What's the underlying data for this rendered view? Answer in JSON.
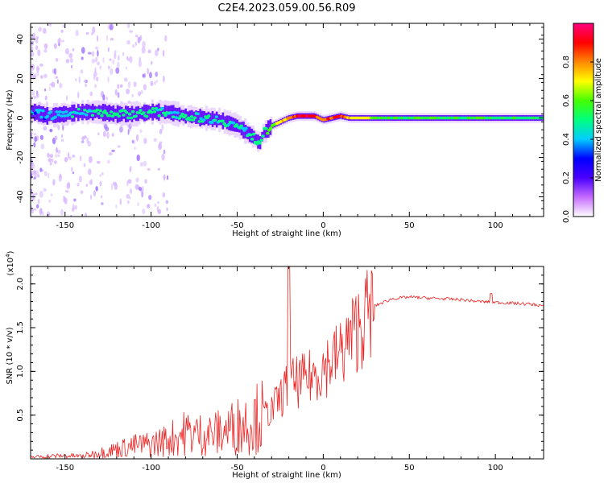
{
  "figure": {
    "title": "C2E4.2023.059.00.56.R09"
  },
  "colorbar": {
    "label": "Normalized spectral amplitude",
    "ticks": [
      "0.0",
      "0.2",
      "0.4",
      "0.6",
      "0.8"
    ],
    "tick_values": [
      0.0,
      0.2,
      0.4,
      0.6,
      0.8
    ],
    "colormap": [
      "#ffffff",
      "#c66cff",
      "#4b00ff",
      "#0000ff",
      "#00ccff",
      "#00ff80",
      "#44ff00",
      "#ffff00",
      "#ff8800",
      "#ff0000",
      "#ff0080"
    ]
  },
  "chart_data": [
    {
      "type": "heatmap",
      "title": "",
      "xlabel": "Height of straight line (km)",
      "ylabel": "Frequency (Hz)",
      "xlim": [
        -170,
        128
      ],
      "ylim": [
        -50,
        48
      ],
      "xticks": [
        "-150",
        "-100",
        "-50",
        "0",
        "50",
        "100"
      ],
      "xtick_values": [
        -150,
        -100,
        -50,
        0,
        50,
        100
      ],
      "yticks": [
        "40",
        "20",
        "0",
        "-20",
        "-40"
      ],
      "ytick_values": [
        40,
        20,
        0,
        -20,
        -40
      ],
      "value_range": [
        0,
        1
      ],
      "ridge": {
        "x": [
          -168,
          -160,
          -150,
          -140,
          -130,
          -120,
          -110,
          -100,
          -90,
          -80,
          -70,
          -60,
          -50,
          -45,
          -40,
          -37,
          -35,
          -30,
          -25,
          -20,
          -15,
          -10,
          -5,
          0,
          5,
          10,
          15,
          20,
          30,
          40,
          60,
          80,
          100,
          128
        ],
        "frequency": [
          3,
          1,
          2,
          3,
          3,
          2,
          2,
          3,
          3,
          1,
          0,
          -1,
          -4,
          -7,
          -10,
          -13,
          -8,
          -4,
          -2,
          0,
          1,
          1,
          1,
          -1,
          0,
          1,
          0,
          0,
          0,
          0,
          0,
          0,
          0,
          0
        ],
        "amplitude": [
          0.35,
          0.4,
          0.45,
          0.45,
          0.45,
          0.5,
          0.5,
          0.5,
          0.45,
          0.45,
          0.45,
          0.45,
          0.45,
          0.45,
          0.5,
          0.45,
          0.5,
          0.6,
          0.7,
          0.8,
          0.9,
          0.95,
          0.9,
          0.8,
          0.85,
          0.9,
          0.75,
          0.7,
          0.6,
          0.55,
          0.55,
          0.55,
          0.55,
          0.5
        ]
      }
    },
    {
      "type": "line",
      "title": "",
      "xlabel": "Height of straight line (km)",
      "ylabel": "SNR (10 * v/v)",
      "y_multiplier": "(x10",
      "y_multiplier_exp": "4",
      "y_multiplier_close": ")",
      "xlim": [
        -170,
        128
      ],
      "ylim": [
        0,
        22000
      ],
      "xticks": [
        "-150",
        "-100",
        "-50",
        "0",
        "50",
        "100"
      ],
      "xtick_values": [
        -150,
        -100,
        -50,
        0,
        50,
        100
      ],
      "yticks": [
        "2.0",
        "1.5",
        "1.0",
        "0.5"
      ],
      "ytick_values": [
        20000,
        15000,
        10000,
        5000
      ],
      "color": "#ee2222",
      "series": [
        {
          "x": [
            -170,
            -160,
            -150,
            -140,
            -130,
            -120,
            -110,
            -100,
            -90,
            -80,
            -70,
            -60,
            -50,
            -40,
            -30,
            -20,
            -10,
            0,
            10,
            20,
            30,
            40,
            50,
            60,
            70,
            80,
            90,
            100,
            110,
            120,
            128
          ],
          "values": [
            200,
            300,
            350,
            300,
            700,
            1100,
            1500,
            1700,
            2200,
            3000,
            2800,
            3000,
            3800,
            4500,
            5500,
            8500,
            9000,
            10500,
            12000,
            15000,
            17500,
            18300,
            18500,
            18400,
            18300,
            18200,
            18000,
            17900,
            17800,
            17700,
            17500
          ]
        }
      ],
      "annotations": [
        {
          "x": -20,
          "value": 22000,
          "label": ""
        },
        {
          "x": -20,
          "value": 20500,
          "label": ""
        }
      ]
    }
  ]
}
